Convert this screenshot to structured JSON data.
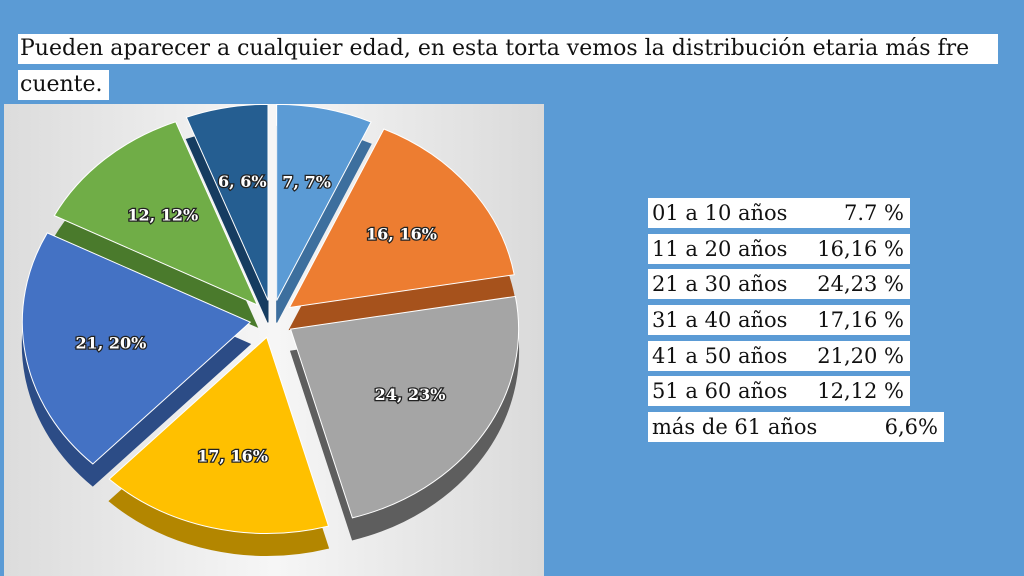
{
  "title": {
    "line1": "Pueden aparecer a cualquier edad, en esta torta vemos la distribución etaria más fre",
    "line2": "cuente."
  },
  "legend": [
    {
      "label": "01 a 10 años",
      "value": "7.7 %"
    },
    {
      "label": "11 a 20 años",
      "value": "16,16 %"
    },
    {
      "label": "21 a 30 años",
      "value": "24,23 %"
    },
    {
      "label": "31 a 40 años",
      "value": "17,16 %"
    },
    {
      "label": "41 a 50 años",
      "value": "21,20 %"
    },
    {
      "label": "51 a 60 años",
      "value": "12,12 %"
    },
    {
      "label": "más de 61 años",
      "value": "6,6%"
    }
  ],
  "chart_data": {
    "type": "pie",
    "title": "",
    "slices": [
      {
        "value": 7,
        "label": "7, 7%",
        "color": "#5b9bd5",
        "side": "#3d6f9e"
      },
      {
        "value": 16,
        "label": "16, 16%",
        "color": "#ed7d31",
        "side": "#a6521c"
      },
      {
        "value": 24,
        "label": "24, 23%",
        "color": "#a5a5a5",
        "side": "#5e5e5e"
      },
      {
        "value": 17,
        "label": "17, 16%",
        "color": "#ffc000",
        "side": "#b38600"
      },
      {
        "value": 21,
        "label": "21, 20%",
        "color": "#4472c4",
        "side": "#2c4c86"
      },
      {
        "value": 12,
        "label": "12, 12%",
        "color": "#70ad47",
        "side": "#4a7a2c"
      },
      {
        "value": 6,
        "label": "6, 6%",
        "color": "#255e91",
        "side": "#163c60"
      }
    ]
  }
}
